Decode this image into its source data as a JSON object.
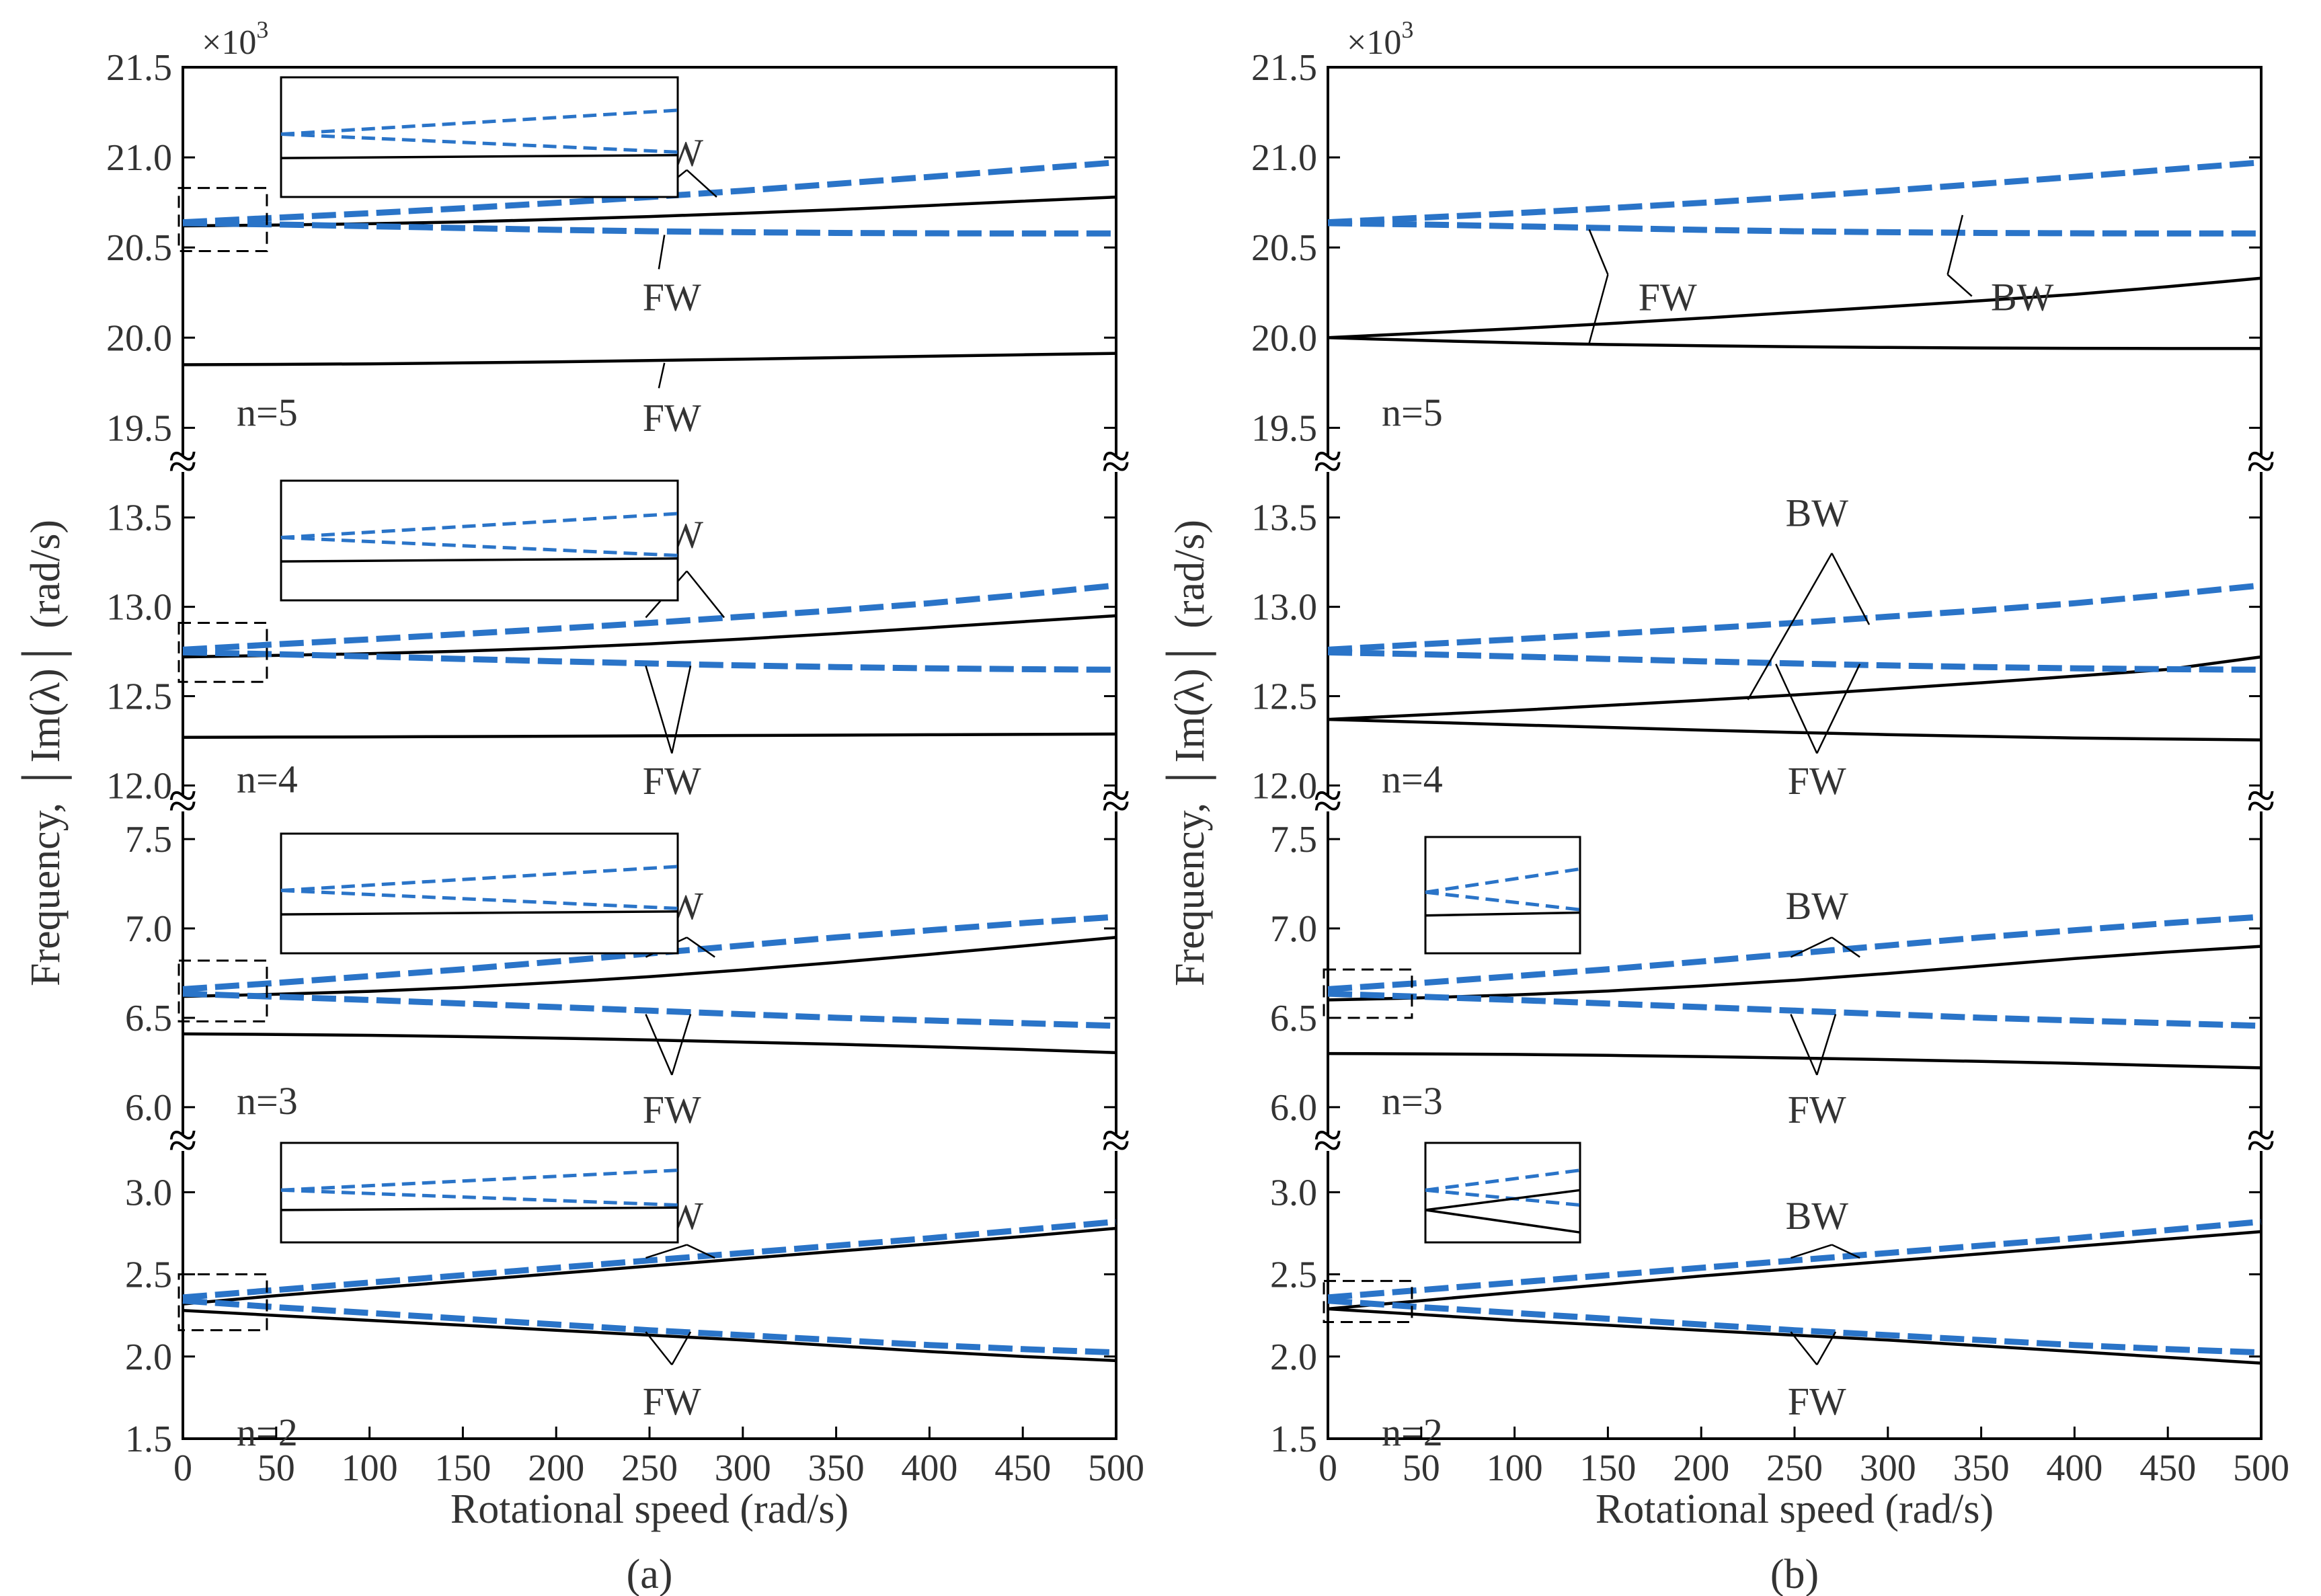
{
  "figure": {
    "x_label": "Rotational speed  (rad/s)",
    "y_label": "Frequency, │Im(λ)│ (rad/s)",
    "x_ticks": [
      0,
      50,
      100,
      150,
      200,
      250,
      300,
      350,
      400,
      450,
      500
    ],
    "multiplier_base": "×10",
    "multiplier_exp": "3",
    "break_symbol": "≈"
  },
  "chart_data": [
    {
      "type": "line",
      "panel_label": "(a)",
      "xlabel": "Rotational speed  (rad/s)",
      "ylabel": "Frequency, │Im(λ)│ (rad/s)",
      "x": [
        0,
        50,
        100,
        150,
        200,
        250,
        300,
        350,
        400,
        450,
        500
      ],
      "xlim": [
        0,
        500
      ],
      "y_unit_multiplier": "×10^3",
      "bands": [
        {
          "n_label": "n=5",
          "ylim": [
            19.3,
            21.5
          ],
          "ticks": [
            19.5,
            20.0,
            20.5,
            21.0,
            21.5
          ],
          "tick_labels": [
            "19.5",
            "20.0",
            "20.5",
            "21.0",
            "21.5"
          ],
          "break_above": false,
          "series": [
            {
              "name": "black-upper",
              "style": "solid",
              "color": "#000000",
              "values": [
                20.62,
                20.625,
                20.632,
                20.642,
                20.656,
                20.672,
                20.69,
                20.71,
                20.733,
                20.757,
                20.78
              ]
            },
            {
              "name": "black-lower",
              "style": "solid",
              "color": "#000000",
              "values": [
                19.85,
                19.852,
                19.855,
                19.86,
                19.866,
                19.873,
                19.881,
                19.889,
                19.897,
                19.905,
                19.913
              ]
            },
            {
              "name": "blue-upper",
              "style": "dashed",
              "color": "#2a74c8",
              "values": [
                20.64,
                20.665,
                20.69,
                20.718,
                20.748,
                20.78,
                20.815,
                20.853,
                20.892,
                20.932,
                20.972
              ]
            },
            {
              "name": "blue-lower",
              "style": "dashed",
              "color": "#2a74c8",
              "values": [
                20.635,
                20.628,
                20.618,
                20.608,
                20.598,
                20.59,
                20.585,
                20.581,
                20.579,
                20.578,
                20.578
              ]
            }
          ],
          "labels": [
            {
              "text": "BW"
            },
            {
              "text": "FW"
            },
            {
              "text": "FW"
            }
          ]
        },
        {
          "n_label": "n=4",
          "ylim": [
            11.9,
            13.8
          ],
          "ticks": [
            12.0,
            12.5,
            13.0,
            13.5
          ],
          "tick_labels": [
            "12.0",
            "12.5",
            "13.0",
            "13.5"
          ],
          "break_above": true,
          "series": [
            {
              "name": "black-upper",
              "style": "solid",
              "color": "#000000",
              "values": [
                12.72,
                12.728,
                12.738,
                12.752,
                12.77,
                12.793,
                12.82,
                12.85,
                12.883,
                12.917,
                12.95
              ]
            },
            {
              "name": "black-lower",
              "style": "solid",
              "color": "#000000",
              "values": [
                12.27,
                12.271,
                12.272,
                12.274,
                12.276,
                12.278,
                12.28,
                12.282,
                12.284,
                12.286,
                12.288
              ]
            },
            {
              "name": "blue-upper",
              "style": "dashed",
              "color": "#2a74c8",
              "values": [
                12.76,
                12.79,
                12.818,
                12.848,
                12.878,
                12.91,
                12.945,
                12.98,
                13.02,
                13.068,
                13.12
              ]
            },
            {
              "name": "blue-lower",
              "style": "dashed",
              "color": "#2a74c8",
              "values": [
                12.745,
                12.735,
                12.722,
                12.708,
                12.695,
                12.683,
                12.672,
                12.663,
                12.656,
                12.651,
                12.648
              ]
            }
          ],
          "labels": [
            {
              "text": "BW"
            },
            {
              "text": "FW"
            }
          ]
        },
        {
          "n_label": "n=3",
          "ylim": [
            5.8,
            7.7
          ],
          "ticks": [
            6.0,
            6.5,
            7.0,
            7.5
          ],
          "tick_labels": [
            "6.0",
            "6.5",
            "7.0",
            "7.5"
          ],
          "break_above": true,
          "series": [
            {
              "name": "black-upper",
              "style": "solid",
              "color": "#000000",
              "values": [
                6.62,
                6.632,
                6.648,
                6.67,
                6.698,
                6.73,
                6.768,
                6.81,
                6.855,
                6.902,
                6.95
              ]
            },
            {
              "name": "black-lower",
              "style": "solid",
              "color": "#000000",
              "values": [
                6.41,
                6.407,
                6.402,
                6.395,
                6.386,
                6.376,
                6.364,
                6.352,
                6.338,
                6.323,
                6.305
              ]
            },
            {
              "name": "blue-upper",
              "style": "dashed",
              "color": "#2a74c8",
              "values": [
                6.66,
                6.695,
                6.733,
                6.772,
                6.815,
                6.86,
                6.905,
                6.95,
                6.99,
                7.03,
                7.065
              ]
            },
            {
              "name": "blue-lower",
              "style": "dashed",
              "color": "#2a74c8",
              "values": [
                6.635,
                6.618,
                6.6,
                6.58,
                6.56,
                6.54,
                6.52,
                6.5,
                6.485,
                6.47,
                6.455
              ]
            }
          ],
          "labels": [
            {
              "text": "BW"
            },
            {
              "text": "FW"
            }
          ]
        },
        {
          "n_label": "n=2",
          "ylim": [
            1.5,
            3.3
          ],
          "ticks": [
            1.5,
            2.0,
            2.5,
            3.0
          ],
          "tick_labels": [
            "1.5",
            "2.0",
            "2.5",
            "3.0"
          ],
          "break_above": true,
          "series": [
            {
              "name": "black-upper",
              "style": "solid",
              "color": "#000000",
              "values": [
                2.32,
                2.37,
                2.415,
                2.46,
                2.505,
                2.55,
                2.595,
                2.64,
                2.685,
                2.73,
                2.78
              ]
            },
            {
              "name": "black-lower",
              "style": "solid",
              "color": "#000000",
              "values": [
                2.28,
                2.25,
                2.22,
                2.19,
                2.16,
                2.13,
                2.1,
                2.065,
                2.03,
                2.0,
                1.975
              ]
            },
            {
              "name": "blue-upper",
              "style": "dashed",
              "color": "#2a74c8",
              "values": [
                2.36,
                2.405,
                2.45,
                2.495,
                2.54,
                2.585,
                2.63,
                2.675,
                2.72,
                2.77,
                2.82
              ]
            },
            {
              "name": "blue-lower",
              "style": "dashed",
              "color": "#2a74c8",
              "values": [
                2.34,
                2.3,
                2.265,
                2.23,
                2.195,
                2.16,
                2.13,
                2.1,
                2.07,
                2.045,
                2.025
              ]
            }
          ],
          "labels": [
            {
              "text": "BW"
            },
            {
              "text": "FW"
            }
          ]
        }
      ]
    },
    {
      "type": "line",
      "panel_label": "(b)",
      "xlabel": "Rotational speed  (rad/s)",
      "ylabel": "Frequency, │Im(λ)│ (rad/s)",
      "x": [
        0,
        50,
        100,
        150,
        200,
        250,
        300,
        350,
        400,
        450,
        500
      ],
      "xlim": [
        0,
        500
      ],
      "y_unit_multiplier": "×10^3",
      "bands": [
        {
          "n_label": "n=5",
          "ylim": [
            19.3,
            21.5
          ],
          "ticks": [
            19.5,
            20.0,
            20.5,
            21.0,
            21.5
          ],
          "tick_labels": [
            "19.5",
            "20.0",
            "20.5",
            "21.0",
            "21.5"
          ],
          "break_above": false,
          "series": [
            {
              "name": "black-upper",
              "style": "solid",
              "color": "#000000",
              "values": [
                20.0,
                20.025,
                20.05,
                20.078,
                20.108,
                20.14,
                20.172,
                20.205,
                20.24,
                20.283,
                20.33
              ]
            },
            {
              "name": "black-lower",
              "style": "solid",
              "color": "#000000",
              "values": [
                20.0,
                19.985,
                19.972,
                19.962,
                19.955,
                19.95,
                19.946,
                19.943,
                19.941,
                19.94,
                19.94
              ]
            },
            {
              "name": "blue-upper",
              "style": "dashed",
              "color": "#2a74c8",
              "values": [
                20.64,
                20.665,
                20.69,
                20.718,
                20.748,
                20.78,
                20.815,
                20.853,
                20.892,
                20.932,
                20.972
              ]
            },
            {
              "name": "blue-lower",
              "style": "dashed",
              "color": "#2a74c8",
              "values": [
                20.635,
                20.628,
                20.618,
                20.608,
                20.598,
                20.59,
                20.585,
                20.581,
                20.579,
                20.578,
                20.578
              ]
            }
          ],
          "labels": [
            {
              "text": "FW"
            },
            {
              "text": "BW"
            }
          ]
        },
        {
          "n_label": "n=4",
          "ylim": [
            11.9,
            13.8
          ],
          "ticks": [
            12.0,
            12.5,
            13.0,
            13.5
          ],
          "tick_labels": [
            "12.0",
            "12.5",
            "13.0",
            "13.5"
          ],
          "break_above": true,
          "series": [
            {
              "name": "black-upper",
              "style": "solid",
              "color": "#000000",
              "values": [
                12.37,
                12.395,
                12.42,
                12.448,
                12.477,
                12.507,
                12.54,
                12.575,
                12.612,
                12.65,
                12.72
              ]
            },
            {
              "name": "black-lower",
              "style": "solid",
              "color": "#000000",
              "values": [
                12.37,
                12.355,
                12.34,
                12.325,
                12.31,
                12.297,
                12.285,
                12.275,
                12.266,
                12.26,
                12.255
              ]
            },
            {
              "name": "blue-upper",
              "style": "dashed",
              "color": "#2a74c8",
              "values": [
                12.76,
                12.79,
                12.818,
                12.848,
                12.878,
                12.91,
                12.945,
                12.98,
                13.02,
                13.068,
                13.12
              ]
            },
            {
              "name": "blue-lower",
              "style": "dashed",
              "color": "#2a74c8",
              "values": [
                12.745,
                12.735,
                12.722,
                12.708,
                12.695,
                12.683,
                12.672,
                12.663,
                12.656,
                12.651,
                12.648
              ]
            }
          ],
          "labels": [
            {
              "text": "BW"
            },
            {
              "text": "FW"
            }
          ]
        },
        {
          "n_label": "n=3",
          "ylim": [
            5.8,
            7.7
          ],
          "ticks": [
            6.0,
            6.5,
            7.0,
            7.5
          ],
          "tick_labels": [
            "6.0",
            "6.5",
            "7.0",
            "7.5"
          ],
          "break_above": true,
          "series": [
            {
              "name": "black-upper",
              "style": "solid",
              "color": "#000000",
              "values": [
                6.6,
                6.612,
                6.628,
                6.65,
                6.678,
                6.71,
                6.748,
                6.79,
                6.832,
                6.868,
                6.9
              ]
            },
            {
              "name": "black-lower",
              "style": "solid",
              "color": "#000000",
              "values": [
                6.3,
                6.298,
                6.295,
                6.29,
                6.283,
                6.275,
                6.266,
                6.256,
                6.245,
                6.232,
                6.22
              ]
            },
            {
              "name": "blue-upper",
              "style": "dashed",
              "color": "#2a74c8",
              "values": [
                6.66,
                6.695,
                6.733,
                6.772,
                6.815,
                6.86,
                6.905,
                6.95,
                6.99,
                7.03,
                7.065
              ]
            },
            {
              "name": "blue-lower",
              "style": "dashed",
              "color": "#2a74c8",
              "values": [
                6.635,
                6.618,
                6.6,
                6.58,
                6.56,
                6.54,
                6.52,
                6.5,
                6.485,
                6.47,
                6.455
              ]
            }
          ],
          "labels": [
            {
              "text": "BW"
            },
            {
              "text": "FW"
            }
          ]
        },
        {
          "n_label": "n=2",
          "ylim": [
            1.5,
            3.3
          ],
          "ticks": [
            1.5,
            2.0,
            2.5,
            3.0
          ],
          "tick_labels": [
            "1.5",
            "2.0",
            "2.5",
            "3.0"
          ],
          "break_above": true,
          "series": [
            {
              "name": "black-upper",
              "style": "solid",
              "color": "#000000",
              "values": [
                2.29,
                2.34,
                2.39,
                2.44,
                2.49,
                2.535,
                2.58,
                2.625,
                2.67,
                2.715,
                2.76
              ]
            },
            {
              "name": "black-lower",
              "style": "solid",
              "color": "#000000",
              "values": [
                2.29,
                2.255,
                2.22,
                2.19,
                2.16,
                2.13,
                2.1,
                2.065,
                2.03,
                1.995,
                1.96
              ]
            },
            {
              "name": "blue-upper",
              "style": "dashed",
              "color": "#2a74c8",
              "values": [
                2.36,
                2.405,
                2.45,
                2.495,
                2.54,
                2.585,
                2.63,
                2.675,
                2.72,
                2.77,
                2.82
              ]
            },
            {
              "name": "blue-lower",
              "style": "dashed",
              "color": "#2a74c8",
              "values": [
                2.34,
                2.3,
                2.265,
                2.23,
                2.195,
                2.16,
                2.13,
                2.1,
                2.07,
                2.045,
                2.025
              ]
            }
          ],
          "labels": [
            {
              "text": "BW"
            },
            {
              "text": "FW"
            }
          ]
        }
      ]
    }
  ]
}
